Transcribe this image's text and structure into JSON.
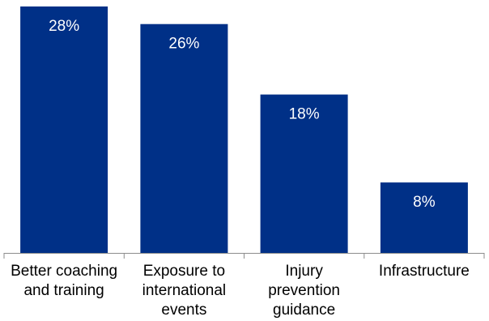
{
  "chart_data": {
    "type": "bar",
    "title": "",
    "xlabel": "",
    "ylabel": "",
    "categories": [
      "Better coaching and training",
      "Exposure to international events",
      "Injury prevention guidance",
      "Infrastructure"
    ],
    "category_label_lines": [
      [
        "Better coaching",
        "and training"
      ],
      [
        "Exposure to",
        "international",
        "events"
      ],
      [
        "Injury",
        "prevention",
        "guidance"
      ],
      [
        "Infrastructure"
      ]
    ],
    "values": [
      28,
      26,
      18,
      8
    ],
    "value_labels": [
      "28%",
      "26%",
      "18%",
      "8%"
    ],
    "unit": "%",
    "ylim": [
      0,
      28
    ],
    "grid": false,
    "legend": "none",
    "bar_color": "#003087",
    "label_color": "#ffffff"
  }
}
